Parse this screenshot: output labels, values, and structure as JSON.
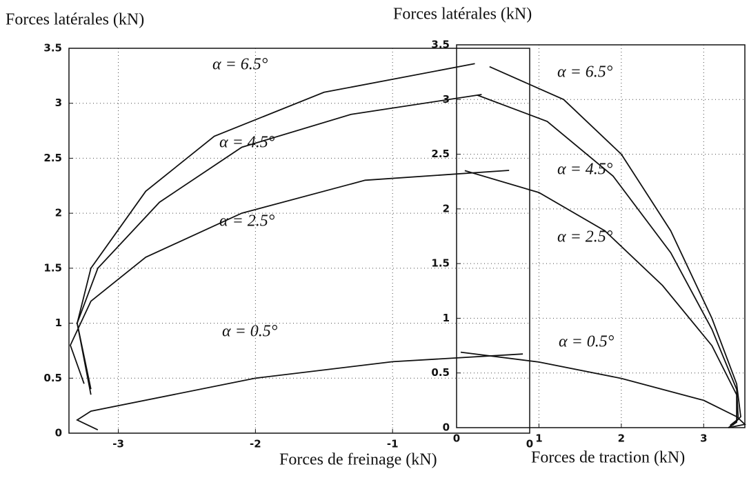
{
  "chart_data": [
    {
      "type": "line",
      "y_label": "Forces latérales (kN)",
      "x_label": "Forces de freinage (kN)",
      "xlim": [
        -3.36,
        0
      ],
      "xticks": [
        -3,
        -2,
        -1,
        0
      ],
      "ylim": [
        0,
        3.5
      ],
      "yticks": [
        0,
        0.5,
        1,
        1.5,
        2,
        2.5,
        3,
        3.5
      ],
      "grid": true,
      "series": [
        {
          "name": "α = 6.5°",
          "color": "#111111",
          "x": [
            -3.2,
            -3.3,
            -3.2,
            -2.8,
            -2.3,
            -1.5,
            -0.4
          ],
          "values": [
            0.4,
            1.0,
            1.5,
            2.2,
            2.7,
            3.1,
            3.36
          ]
        },
        {
          "name": "α = 4.5°",
          "color": "#111111",
          "x": [
            -3.2,
            -3.3,
            -3.15,
            -2.7,
            -2.1,
            -1.3,
            -0.35
          ],
          "values": [
            0.35,
            1.0,
            1.5,
            2.1,
            2.6,
            2.9,
            3.08
          ]
        },
        {
          "name": "α = 2.5°",
          "color": "#111111",
          "x": [
            -3.25,
            -3.35,
            -3.2,
            -2.8,
            -2.1,
            -1.2,
            -0.15
          ],
          "values": [
            0.45,
            0.8,
            1.2,
            1.6,
            2.0,
            2.3,
            2.39
          ]
        },
        {
          "name": "α = 0.5°",
          "color": "#111111",
          "x": [
            -3.15,
            -3.3,
            -3.2,
            -2,
            -1,
            -0.05
          ],
          "values": [
            0.03,
            0.12,
            0.2,
            0.5,
            0.65,
            0.72
          ]
        }
      ]
    },
    {
      "type": "line",
      "y_label": "Forces latérales (kN)",
      "x_label": "Forces de traction (kN)",
      "xlim": [
        0,
        3.5
      ],
      "xticks": [
        0,
        1,
        2,
        3
      ],
      "ylim": [
        0,
        3.5
      ],
      "yticks": [
        0,
        0.5,
        1,
        1.5,
        2,
        2.5,
        3,
        3.5
      ],
      "grid": true,
      "series": [
        {
          "name": "α = 6.5°",
          "color": "#111111",
          "x": [
            0.4,
            1.3,
            2.0,
            2.6,
            3.1,
            3.4,
            3.45,
            3.35
          ],
          "values": [
            3.3,
            3.0,
            2.5,
            1.8,
            1.0,
            0.4,
            0.1,
            0.02
          ]
        },
        {
          "name": "α = 4.5°",
          "color": "#111111",
          "x": [
            0.25,
            1.1,
            1.9,
            2.6,
            3.1,
            3.4,
            3.42,
            3.32
          ],
          "values": [
            3.04,
            2.8,
            2.3,
            1.6,
            0.9,
            0.35,
            0.08,
            0.02
          ]
        },
        {
          "name": "α = 2.5°",
          "color": "#111111",
          "x": [
            0.1,
            1.0,
            1.8,
            2.5,
            3.1,
            3.4,
            3.4,
            3.3
          ],
          "values": [
            2.35,
            2.15,
            1.8,
            1.3,
            0.75,
            0.3,
            0.05,
            0
          ]
        },
        {
          "name": "α = 0.5°",
          "color": "#111111",
          "x": [
            0.05,
            1,
            2,
            3,
            3.4,
            3.5,
            3.3
          ],
          "values": [
            0.69,
            0.6,
            0.45,
            0.25,
            0.1,
            0.03,
            0
          ]
        }
      ]
    }
  ]
}
